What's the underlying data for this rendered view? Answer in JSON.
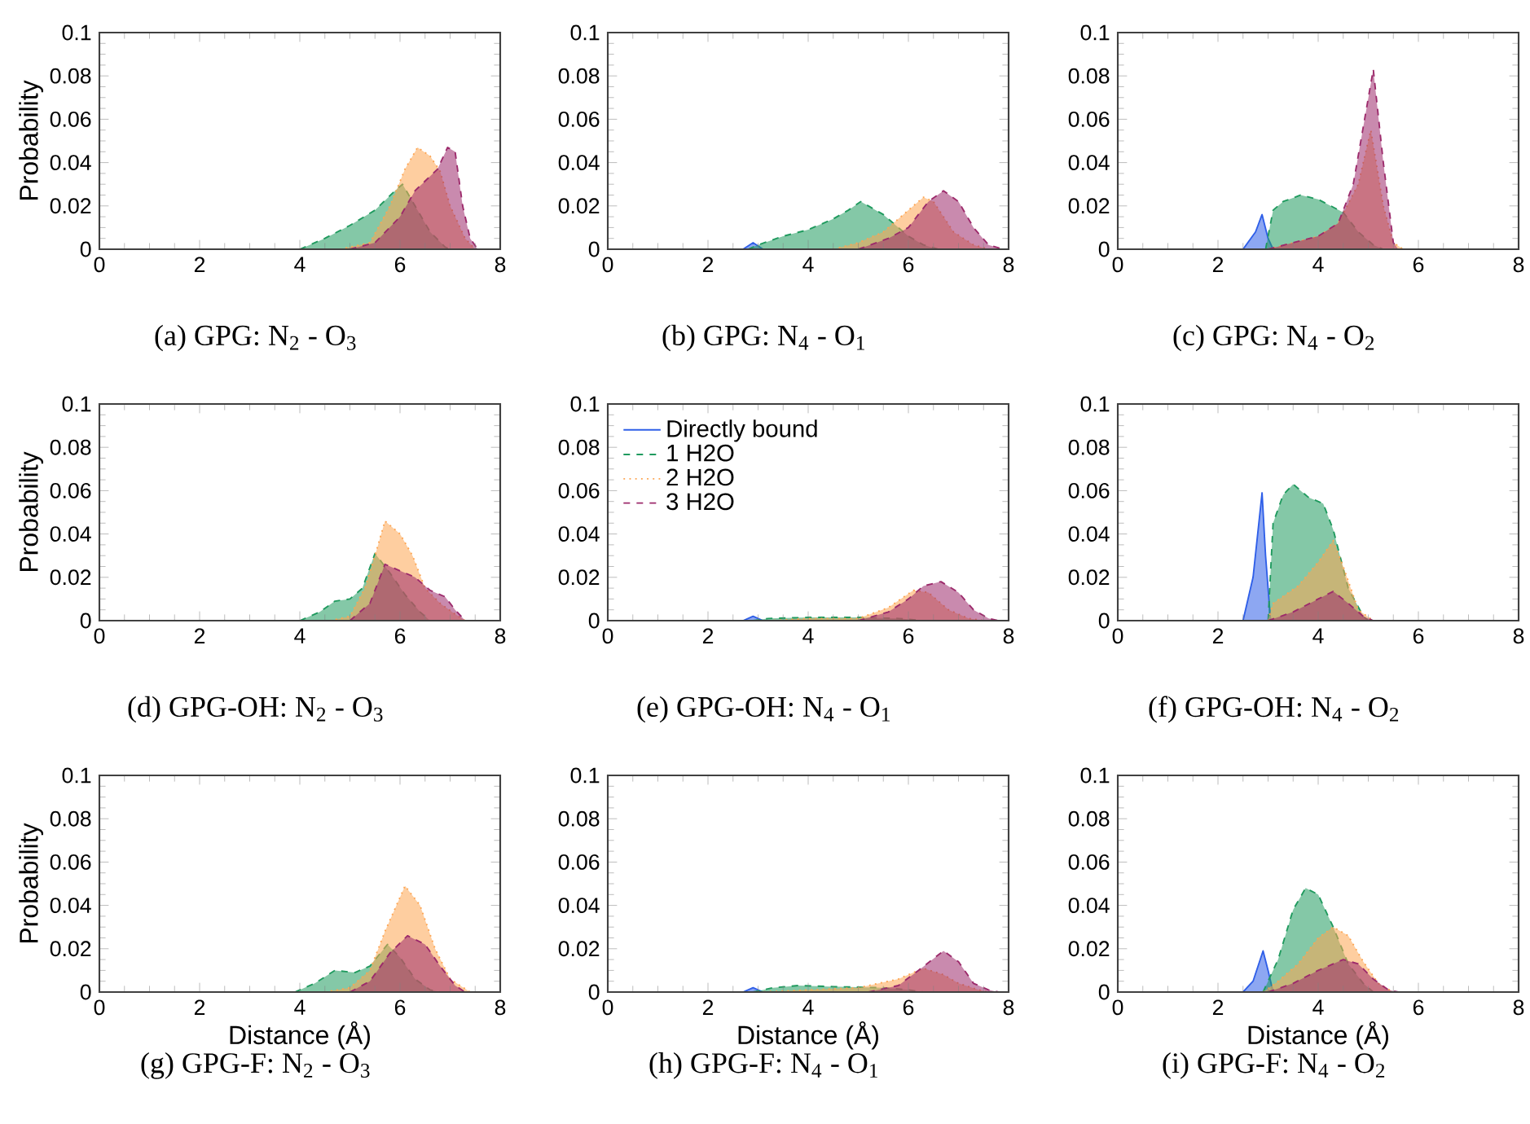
{
  "chart_data": [
    {
      "type": "area",
      "title": "(a) GPG: N$_{2}$ - O$_{3}$",
      "ylabel": "Probability",
      "xlim": [
        0,
        8
      ],
      "ylim": [
        0,
        0.1
      ],
      "xticks": [
        0,
        2,
        4,
        6,
        8
      ],
      "yticks": [
        0,
        0.02,
        0.04,
        0.06,
        0.08,
        0.1
      ],
      "series": [
        {
          "color": "#1f9a5e",
          "line_style": "dashed",
          "x": [
            4.0,
            4.5,
            5.0,
            5.5,
            5.9,
            6.05,
            6.3,
            6.6,
            6.9,
            7.0
          ],
          "values": [
            0,
            0.005,
            0.011,
            0.018,
            0.027,
            0.03,
            0.02,
            0.008,
            0.001,
            0
          ]
        },
        {
          "color": "#fda552",
          "line_style": "dotted",
          "x": [
            4.8,
            5.4,
            5.8,
            6.1,
            6.35,
            6.6,
            6.8,
            7.0,
            7.3,
            7.5
          ],
          "values": [
            0,
            0.003,
            0.02,
            0.037,
            0.047,
            0.043,
            0.036,
            0.02,
            0.005,
            0
          ]
        },
        {
          "color": "#9c2a6b",
          "line_style": "dashed",
          "x": [
            5.0,
            5.5,
            6.0,
            6.3,
            6.75,
            6.95,
            7.1,
            7.25,
            7.4,
            7.55
          ],
          "values": [
            0,
            0.003,
            0.015,
            0.027,
            0.037,
            0.047,
            0.045,
            0.02,
            0.005,
            0
          ]
        }
      ]
    },
    {
      "type": "area",
      "title": "(b) GPG: N$_{4}$ - O$_{1}$",
      "xlim": [
        0,
        8
      ],
      "ylim": [
        0,
        0.1
      ],
      "xticks": [
        0,
        2,
        4,
        6,
        8
      ],
      "yticks": [
        0,
        0.02,
        0.04,
        0.06,
        0.08,
        0.1
      ],
      "series": [
        {
          "color": "#2f5fe8",
          "line_style": "solid",
          "x": [
            2.7,
            2.9,
            3.1
          ],
          "values": [
            0,
            0.003,
            0
          ]
        },
        {
          "color": "#1f9a5e",
          "line_style": "dashed",
          "x": [
            2.8,
            3.0,
            3.5,
            4.0,
            4.5,
            4.8,
            5.05,
            5.5,
            6.0,
            6.3,
            6.6
          ],
          "values": [
            0,
            0.002,
            0.006,
            0.009,
            0.014,
            0.018,
            0.022,
            0.016,
            0.006,
            0.002,
            0
          ]
        },
        {
          "color": "#fda552",
          "line_style": "dotted",
          "x": [
            4.5,
            5.0,
            5.5,
            6.0,
            6.3,
            6.5,
            6.9,
            7.3,
            7.6
          ],
          "values": [
            0,
            0.003,
            0.008,
            0.018,
            0.024,
            0.022,
            0.008,
            0.002,
            0
          ]
        },
        {
          "color": "#9c2a6b",
          "line_style": "dashed",
          "x": [
            5.0,
            5.6,
            6.0,
            6.4,
            6.7,
            7.0,
            7.3,
            7.6,
            7.9
          ],
          "values": [
            0,
            0.005,
            0.01,
            0.022,
            0.027,
            0.022,
            0.01,
            0.002,
            0
          ]
        }
      ]
    },
    {
      "type": "area",
      "title": "(c) GPG: N$_{4}$ - O$_{2}$",
      "xlim": [
        0,
        8
      ],
      "ylim": [
        0,
        0.1
      ],
      "xticks": [
        0,
        2,
        4,
        6,
        8
      ],
      "yticks": [
        0,
        0.02,
        0.04,
        0.06,
        0.08,
        0.1
      ],
      "series": [
        {
          "color": "#2f5fe8",
          "line_style": "solid",
          "x": [
            2.5,
            2.75,
            2.88,
            3.0,
            3.1
          ],
          "values": [
            0,
            0.008,
            0.016,
            0.005,
            0
          ]
        },
        {
          "color": "#1f9a5e",
          "line_style": "dashed",
          "x": [
            2.95,
            3.1,
            3.3,
            3.65,
            4.0,
            4.5,
            4.8,
            5.1,
            5.3
          ],
          "values": [
            0,
            0.018,
            0.022,
            0.025,
            0.023,
            0.017,
            0.008,
            0.002,
            0
          ]
        },
        {
          "color": "#fda552",
          "line_style": "dotted",
          "x": [
            3.0,
            3.5,
            4.0,
            4.4,
            4.8,
            5.05,
            5.3,
            5.5,
            5.7
          ],
          "values": [
            0,
            0.003,
            0.006,
            0.012,
            0.03,
            0.055,
            0.02,
            0.003,
            0
          ]
        },
        {
          "color": "#9c2a6b",
          "line_style": "dashed",
          "x": [
            3.0,
            3.5,
            4.0,
            4.4,
            4.7,
            5.1,
            5.3,
            5.5,
            5.6
          ],
          "values": [
            0,
            0.003,
            0.006,
            0.012,
            0.03,
            0.083,
            0.04,
            0.003,
            0
          ]
        }
      ]
    },
    {
      "type": "area",
      "title": "(d) GPG-OH: N$_{2}$ - O$_{3}$",
      "ylabel": "Probability",
      "xlim": [
        0,
        8
      ],
      "ylim": [
        0,
        0.1
      ],
      "xticks": [
        0,
        2,
        4,
        6,
        8
      ],
      "yticks": [
        0,
        0.02,
        0.04,
        0.06,
        0.08,
        0.1
      ],
      "series": [
        {
          "color": "#1f9a5e",
          "line_style": "dashed",
          "x": [
            4.0,
            4.4,
            4.7,
            5.0,
            5.25,
            5.5,
            5.8,
            6.1,
            6.4,
            6.6
          ],
          "values": [
            0,
            0.004,
            0.009,
            0.01,
            0.015,
            0.031,
            0.022,
            0.012,
            0.004,
            0
          ]
        },
        {
          "color": "#fda552",
          "line_style": "dotted",
          "x": [
            4.6,
            5.0,
            5.3,
            5.5,
            5.7,
            6.0,
            6.25,
            6.5,
            6.8,
            7.1,
            7.3
          ],
          "values": [
            0,
            0.002,
            0.015,
            0.03,
            0.046,
            0.04,
            0.03,
            0.015,
            0.008,
            0.003,
            0
          ]
        },
        {
          "color": "#9c2a6b",
          "line_style": "dashed",
          "x": [
            5.0,
            5.4,
            5.7,
            6.0,
            6.3,
            6.6,
            6.9,
            7.1,
            7.3
          ],
          "values": [
            0,
            0.008,
            0.026,
            0.023,
            0.02,
            0.014,
            0.011,
            0.005,
            0
          ]
        }
      ]
    },
    {
      "type": "area",
      "title": "(e) GPG-OH: N$_{4}$ - O$_{1}$",
      "legend": "top left",
      "xlim": [
        0,
        8
      ],
      "ylim": [
        0,
        0.1
      ],
      "xticks": [
        0,
        2,
        4,
        6,
        8
      ],
      "yticks": [
        0,
        0.02,
        0.04,
        0.06,
        0.08,
        0.1
      ],
      "series": [
        {
          "name": "Directly bound",
          "color": "#2f5fe8",
          "line_style": "solid",
          "x": [
            2.7,
            2.9,
            3.1
          ],
          "values": [
            0,
            0.002,
            0
          ]
        },
        {
          "name": "1 H2O",
          "color": "#1f9a5e",
          "line_style": "dashed",
          "x": [
            2.9,
            3.2,
            4.0,
            5.0,
            5.8,
            6.3
          ],
          "values": [
            0,
            0.001,
            0.0015,
            0.0015,
            0.001,
            0
          ]
        },
        {
          "name": "2 H2O",
          "color": "#fda552",
          "line_style": "dotted",
          "x": [
            3.2,
            4.0,
            5.0,
            5.6,
            6.1,
            6.4,
            6.8,
            7.2,
            7.5
          ],
          "values": [
            0,
            0.001,
            0.001,
            0.006,
            0.014,
            0.013,
            0.005,
            0.001,
            0
          ]
        },
        {
          "name": "3 H2O",
          "color": "#9c2a6b",
          "line_style": "dashed",
          "x": [
            5.0,
            5.6,
            6.0,
            6.3,
            6.65,
            7.0,
            7.3,
            7.6,
            7.8
          ],
          "values": [
            0,
            0.004,
            0.01,
            0.016,
            0.018,
            0.013,
            0.005,
            0.001,
            0
          ]
        }
      ]
    },
    {
      "type": "area",
      "title": "(f) GPG-OH: N$_{4}$ - O$_{2}$",
      "xlim": [
        0,
        8
      ],
      "ylim": [
        0,
        0.1
      ],
      "xticks": [
        0,
        2,
        4,
        6,
        8
      ],
      "yticks": [
        0,
        0.02,
        0.04,
        0.06,
        0.08,
        0.1
      ],
      "series": [
        {
          "color": "#2f5fe8",
          "line_style": "solid",
          "x": [
            2.5,
            2.7,
            2.88,
            2.95,
            3.05
          ],
          "values": [
            0,
            0.02,
            0.059,
            0.03,
            0
          ]
        },
        {
          "color": "#1f9a5e",
          "line_style": "dashed",
          "x": [
            3.0,
            3.1,
            3.3,
            3.5,
            3.8,
            4.1,
            4.3,
            4.6,
            4.9,
            5.0
          ],
          "values": [
            0,
            0.045,
            0.058,
            0.063,
            0.057,
            0.054,
            0.042,
            0.015,
            0.002,
            0
          ]
        },
        {
          "color": "#fda552",
          "line_style": "dotted",
          "x": [
            3.0,
            3.1,
            3.6,
            4.0,
            4.3,
            4.5,
            4.8,
            5.1
          ],
          "values": [
            0,
            0.008,
            0.016,
            0.027,
            0.037,
            0.025,
            0.005,
            0
          ]
        },
        {
          "color": "#9c2a6b",
          "line_style": "dashed",
          "x": [
            3.0,
            3.5,
            4.0,
            4.3,
            4.6,
            4.9,
            5.1
          ],
          "values": [
            0,
            0.004,
            0.01,
            0.0135,
            0.008,
            0.002,
            0
          ]
        }
      ]
    },
    {
      "type": "area",
      "title": "(g) GPG-F: N$_{2}$ - O$_{3}$",
      "ylabel": "Probability",
      "xlabel": "Distance (Å)",
      "xlim": [
        0,
        8
      ],
      "ylim": [
        0,
        0.1
      ],
      "xticks": [
        0,
        2,
        4,
        6,
        8
      ],
      "yticks": [
        0,
        0.02,
        0.04,
        0.06,
        0.08,
        0.1
      ],
      "series": [
        {
          "color": "#1f9a5e",
          "line_style": "dashed",
          "x": [
            3.9,
            4.3,
            4.7,
            5.1,
            5.4,
            5.75,
            6.0,
            6.3,
            6.6,
            6.8
          ],
          "values": [
            0,
            0.004,
            0.01,
            0.009,
            0.012,
            0.022,
            0.016,
            0.006,
            0.001,
            0
          ]
        },
        {
          "color": "#fda552",
          "line_style": "dotted",
          "x": [
            4.5,
            5.0,
            5.4,
            5.7,
            6.1,
            6.4,
            6.7,
            7.0,
            7.4
          ],
          "values": [
            0,
            0.002,
            0.01,
            0.028,
            0.049,
            0.04,
            0.02,
            0.006,
            0
          ]
        },
        {
          "color": "#9c2a6b",
          "line_style": "dashed",
          "x": [
            5.0,
            5.4,
            5.8,
            6.15,
            6.5,
            6.8,
            7.1,
            7.3
          ],
          "values": [
            0,
            0.005,
            0.018,
            0.026,
            0.022,
            0.012,
            0.003,
            0
          ]
        }
      ]
    },
    {
      "type": "area",
      "title": "(h) GPG-F: N$_{4}$ - O$_{1}$",
      "xlabel": "Distance (Å)",
      "xlim": [
        0,
        8
      ],
      "ylim": [
        0,
        0.1
      ],
      "xticks": [
        0,
        2,
        4,
        6,
        8
      ],
      "yticks": [
        0,
        0.02,
        0.04,
        0.06,
        0.08,
        0.1
      ],
      "series": [
        {
          "color": "#2f5fe8",
          "line_style": "solid",
          "x": [
            2.7,
            2.9,
            3.1
          ],
          "values": [
            0,
            0.002,
            0
          ]
        },
        {
          "color": "#1f9a5e",
          "line_style": "dashed",
          "x": [
            2.9,
            3.3,
            3.8,
            4.5,
            5.5,
            6.0,
            6.3
          ],
          "values": [
            0,
            0.002,
            0.003,
            0.0025,
            0.002,
            0.001,
            0
          ]
        },
        {
          "color": "#fda552",
          "line_style": "dotted",
          "x": [
            3.0,
            4.0,
            5.0,
            5.8,
            6.3,
            6.7,
            7.0,
            7.4,
            7.6
          ],
          "values": [
            0,
            0.001,
            0.002,
            0.006,
            0.011,
            0.008,
            0.004,
            0.001,
            0
          ]
        },
        {
          "color": "#9c2a6b",
          "line_style": "dashed",
          "x": [
            5.2,
            5.8,
            6.2,
            6.7,
            7.0,
            7.3,
            7.6,
            7.8
          ],
          "values": [
            0,
            0.003,
            0.01,
            0.019,
            0.014,
            0.004,
            0.001,
            0
          ]
        }
      ]
    },
    {
      "type": "area",
      "title": "(i) GPG-F: N$_{4}$ - O$_{2}$",
      "xlabel": "Distance (Å)",
      "xlim": [
        0,
        8
      ],
      "ylim": [
        0,
        0.1
      ],
      "xticks": [
        0,
        2,
        4,
        6,
        8
      ],
      "yticks": [
        0,
        0.02,
        0.04,
        0.06,
        0.08,
        0.1
      ],
      "series": [
        {
          "color": "#2f5fe8",
          "line_style": "solid",
          "x": [
            2.5,
            2.7,
            2.9,
            3.0,
            3.1
          ],
          "values": [
            0,
            0.005,
            0.019,
            0.01,
            0
          ]
        },
        {
          "color": "#1f9a5e",
          "line_style": "dashed",
          "x": [
            2.9,
            3.2,
            3.5,
            3.75,
            4.0,
            4.3,
            4.6,
            4.9,
            5.1
          ],
          "values": [
            0,
            0.015,
            0.038,
            0.048,
            0.045,
            0.03,
            0.013,
            0.004,
            0
          ]
        },
        {
          "color": "#fda552",
          "line_style": "dotted",
          "x": [
            2.9,
            3.2,
            3.6,
            4.0,
            4.3,
            4.6,
            4.9,
            5.2,
            5.5
          ],
          "values": [
            0,
            0.005,
            0.013,
            0.025,
            0.03,
            0.026,
            0.014,
            0.004,
            0
          ]
        },
        {
          "color": "#9c2a6b",
          "line_style": "dashed",
          "x": [
            3.0,
            3.5,
            4.0,
            4.5,
            4.8,
            5.1,
            5.4,
            5.6
          ],
          "values": [
            0,
            0.004,
            0.01,
            0.015,
            0.013,
            0.006,
            0.001,
            0
          ]
        }
      ]
    }
  ]
}
